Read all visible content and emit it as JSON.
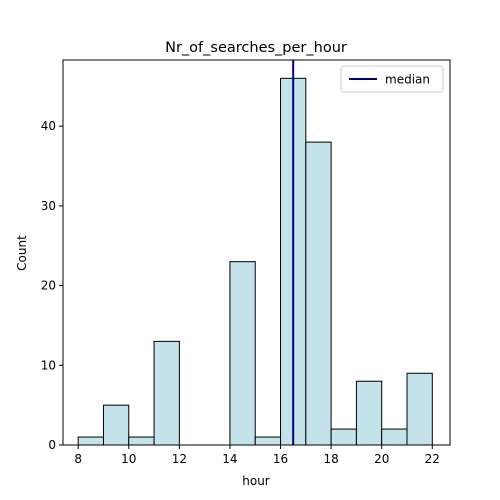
{
  "chart_data": {
    "type": "bar",
    "title": "Nr_of_searches_per_hour",
    "xlabel": "hour",
    "ylabel": "Count",
    "bin_width": 1,
    "bins": [
      {
        "x": 8,
        "count": 1
      },
      {
        "x": 9,
        "count": 5
      },
      {
        "x": 10,
        "count": 1
      },
      {
        "x": 11,
        "count": 13
      },
      {
        "x": 14,
        "count": 23
      },
      {
        "x": 15,
        "count": 1
      },
      {
        "x": 16,
        "count": 46
      },
      {
        "x": 17,
        "count": 38
      },
      {
        "x": 18,
        "count": 2
      },
      {
        "x": 19,
        "count": 8
      },
      {
        "x": 20,
        "count": 2
      },
      {
        "x": 21,
        "count": 9
      }
    ],
    "x_ticks": [
      8,
      10,
      12,
      14,
      16,
      18,
      20,
      22
    ],
    "y_ticks": [
      0,
      10,
      20,
      30,
      40
    ],
    "xlim": [
      7.4,
      22.7
    ],
    "ylim": [
      0,
      48.3
    ],
    "median": 16.5,
    "legend": {
      "entries": [
        "median"
      ],
      "placement": "top-right"
    },
    "grid": false,
    "colors": {
      "bar_fill": "#c4e2ea",
      "bar_edge": "#000000",
      "median_line": "#000080"
    }
  }
}
